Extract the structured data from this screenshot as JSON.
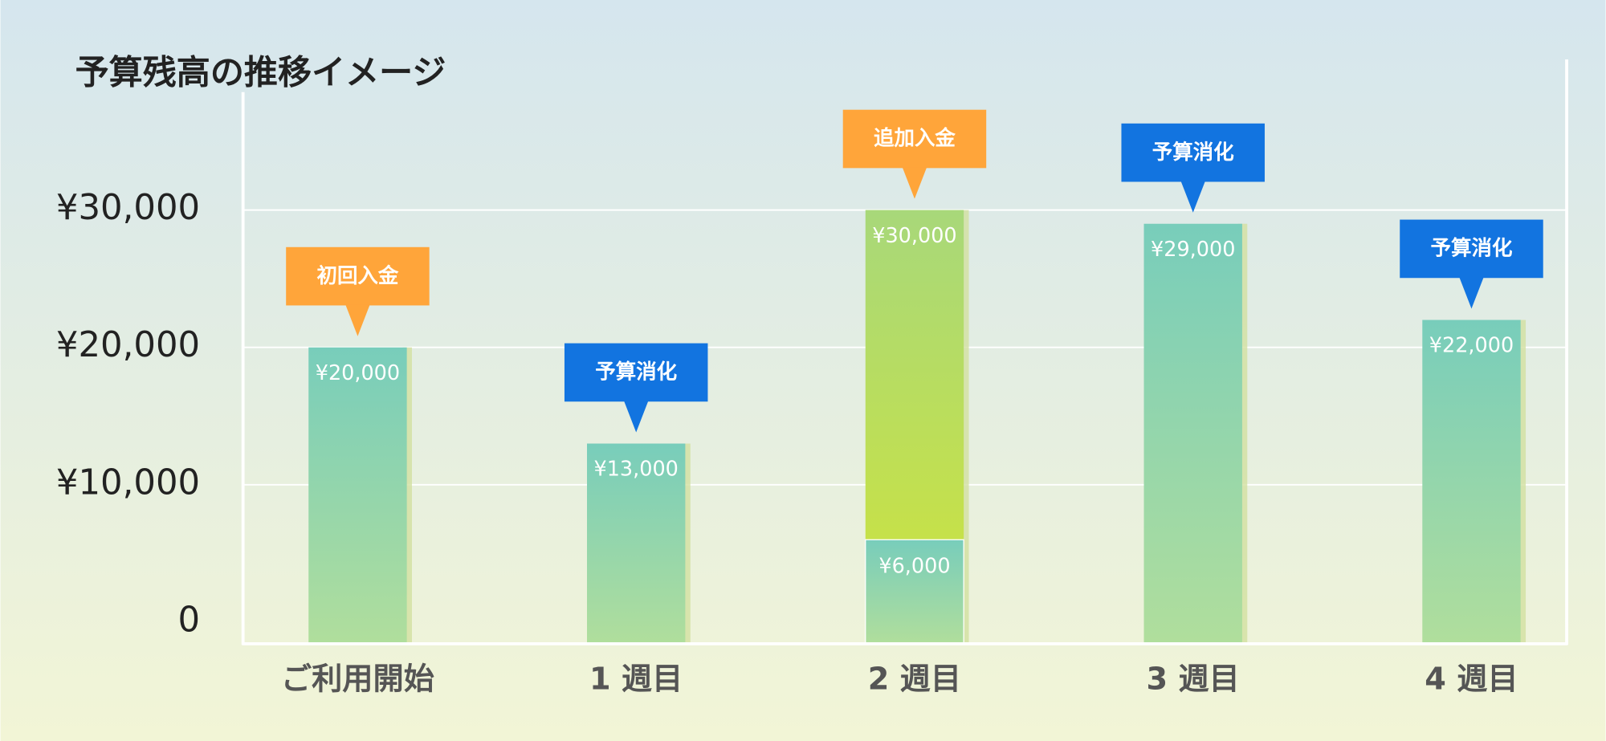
{
  "chart_data": {
    "type": "bar",
    "title": "予算残高の推移イメージ",
    "categories": [
      "ご利用開始",
      "1 週目",
      "2 週目",
      "3 週目",
      "4 週目"
    ],
    "values": [
      20000,
      13000,
      30000,
      29000,
      22000
    ],
    "value_labels": [
      "¥20,000",
      "¥13,000",
      "¥30,000",
      "¥29,000",
      "¥22,000"
    ],
    "base_values": [
      null,
      null,
      6000,
      null,
      null
    ],
    "base_value_labels": [
      null,
      null,
      "¥6,000",
      null,
      null
    ],
    "annotations": [
      {
        "text": "初回入金",
        "color": "#ffa53a"
      },
      {
        "text": "予算消化",
        "color": "#1274e0"
      },
      {
        "text": "追加入金",
        "color": "#ffa53a"
      },
      {
        "text": "予算消化",
        "color": "#1274e0"
      },
      {
        "text": "予算消化",
        "color": "#1274e0"
      }
    ],
    "ylim": [
      -1500,
      40000
    ],
    "yticks": [
      {
        "value": 0,
        "label": "0"
      },
      {
        "value": 10000,
        "label": "¥10,000"
      },
      {
        "value": 20000,
        "label": "¥20,000"
      },
      {
        "value": 30000,
        "label": "¥30,000"
      }
    ],
    "grid": true
  }
}
